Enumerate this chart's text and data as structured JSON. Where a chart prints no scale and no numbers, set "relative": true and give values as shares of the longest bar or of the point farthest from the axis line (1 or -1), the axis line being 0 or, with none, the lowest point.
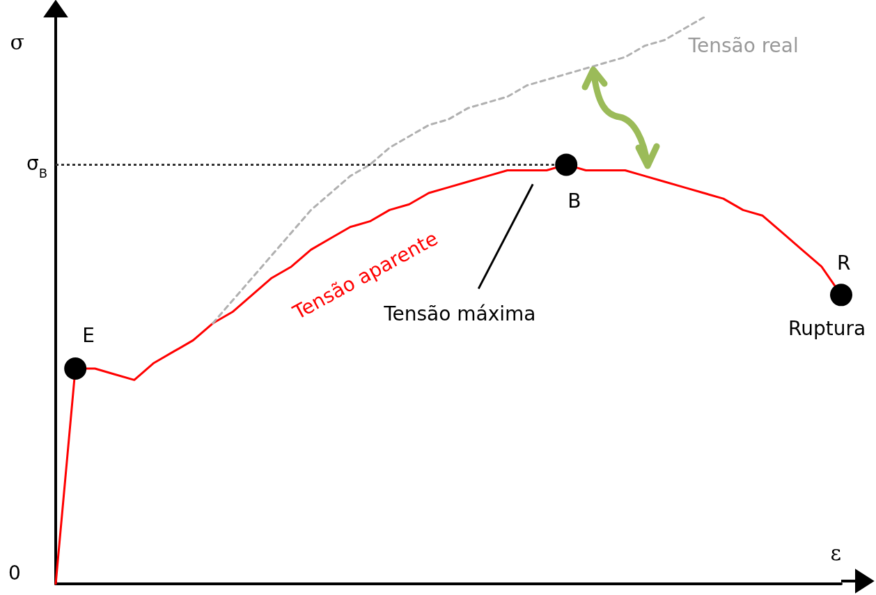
{
  "chart_data": {
    "type": "line",
    "relative": true,
    "xlabel": "ε",
    "ylabel": "σ",
    "categories": [
      null,
      null,
      null,
      null,
      null,
      null,
      null,
      null,
      null,
      null,
      null,
      null,
      null,
      null,
      null,
      null,
      null,
      null,
      null,
      null,
      null,
      null,
      null,
      null,
      null,
      null,
      null,
      null,
      null,
      null,
      null,
      null,
      null,
      null,
      null,
      null,
      null,
      null,
      null,
      null,
      null
    ],
    "series": [
      {
        "name": "Tensão aparente",
        "color": "#ff0000",
        "line_style": "solid",
        "marker": "none",
        "values": [
          0,
          0.38,
          0.38,
          0.37,
          0.36,
          0.39,
          0.41,
          0.43,
          0.46,
          0.48,
          0.51,
          0.54,
          0.56,
          0.59,
          0.61,
          0.63,
          0.64,
          0.66,
          0.67,
          0.69,
          0.7,
          0.71,
          0.72,
          0.73,
          0.73,
          0.73,
          0.74,
          0.73,
          0.73,
          0.73,
          0.72,
          0.71,
          0.7,
          0.69,
          0.68,
          0.66,
          0.65,
          0.62,
          0.59,
          0.56,
          0.51
        ]
      },
      {
        "name": "Tensão real",
        "color": "#b0b0b0",
        "line_style": "dashed",
        "marker": "none",
        "values": [
          null,
          null,
          null,
          null,
          null,
          null,
          null,
          null,
          0.46,
          0.5,
          0.54,
          0.58,
          0.62,
          0.66,
          0.69,
          0.72,
          0.74,
          0.77,
          0.79,
          0.81,
          0.82,
          0.84,
          0.85,
          0.86,
          0.88,
          0.89,
          0.9,
          0.91,
          0.92,
          0.93,
          0.95,
          0.96,
          0.98,
          1.0,
          null,
          null,
          null,
          null,
          null,
          null,
          null
        ]
      }
    ],
    "ref_lines": [
      {
        "axis": "y",
        "value": 0.74,
        "label": "σ$_{B}$",
        "color": "#333333",
        "line_style": "dotted"
      }
    ],
    "annotations": [
      "E",
      "B",
      "R",
      "Tensão máxima",
      "Ruptura",
      "0"
    ],
    "grid": false,
    "legend": false
  }
}
